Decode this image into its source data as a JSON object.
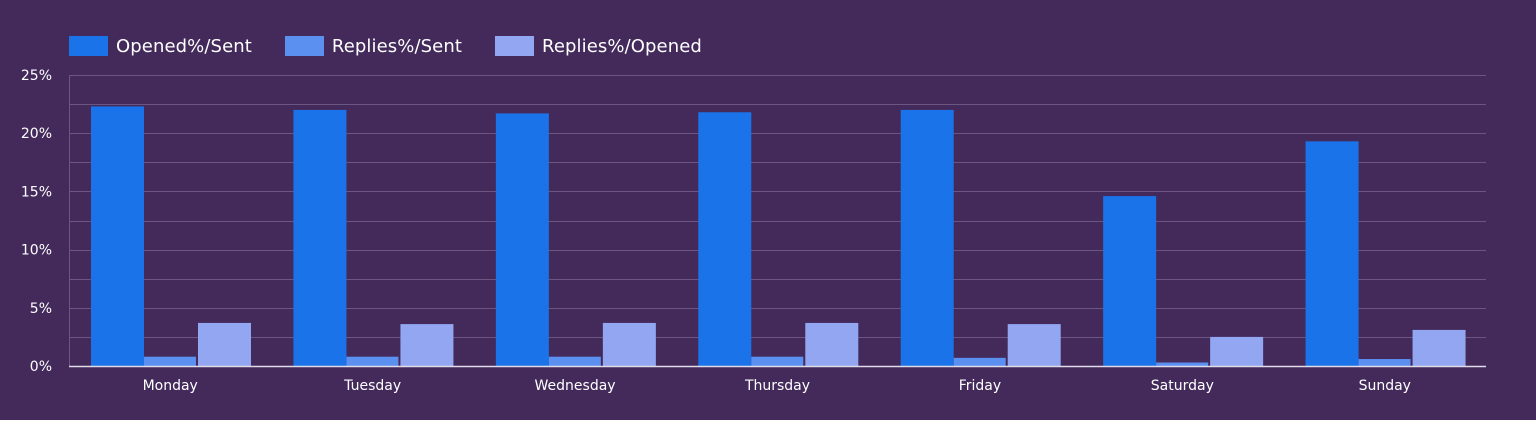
{
  "chart_data": {
    "type": "bar",
    "title": "",
    "xlabel": "",
    "ylabel": "",
    "ylim": [
      0,
      25
    ],
    "yticks": [
      0,
      5,
      10,
      15,
      20,
      25
    ],
    "ytick_labels": [
      "0%",
      "5%",
      "10%",
      "15%",
      "20%",
      "25%"
    ],
    "grid": true,
    "legend_position": "top-left",
    "categories": [
      "Monday",
      "Tuesday",
      "Wednesday",
      "Thursday",
      "Friday",
      "Saturday",
      "Sunday"
    ],
    "series": [
      {
        "name": "Opened%/Sent",
        "color": "#1a73e8",
        "values": [
          22.3,
          22.0,
          21.7,
          21.8,
          22.0,
          14.6,
          19.3
        ]
      },
      {
        "name": "Replies%/Sent",
        "color": "#5b8ff0",
        "values": [
          0.8,
          0.8,
          0.8,
          0.8,
          0.7,
          0.3,
          0.6
        ]
      },
      {
        "name": "Replies%/Opened",
        "color": "#93a6f2",
        "values": [
          3.7,
          3.6,
          3.7,
          3.7,
          3.6,
          2.5,
          3.1
        ]
      }
    ]
  },
  "colors": {
    "background": "#432a5b",
    "gridline": "#6a5680",
    "axis": "#e0dbe8",
    "text": "#ffffff"
  }
}
